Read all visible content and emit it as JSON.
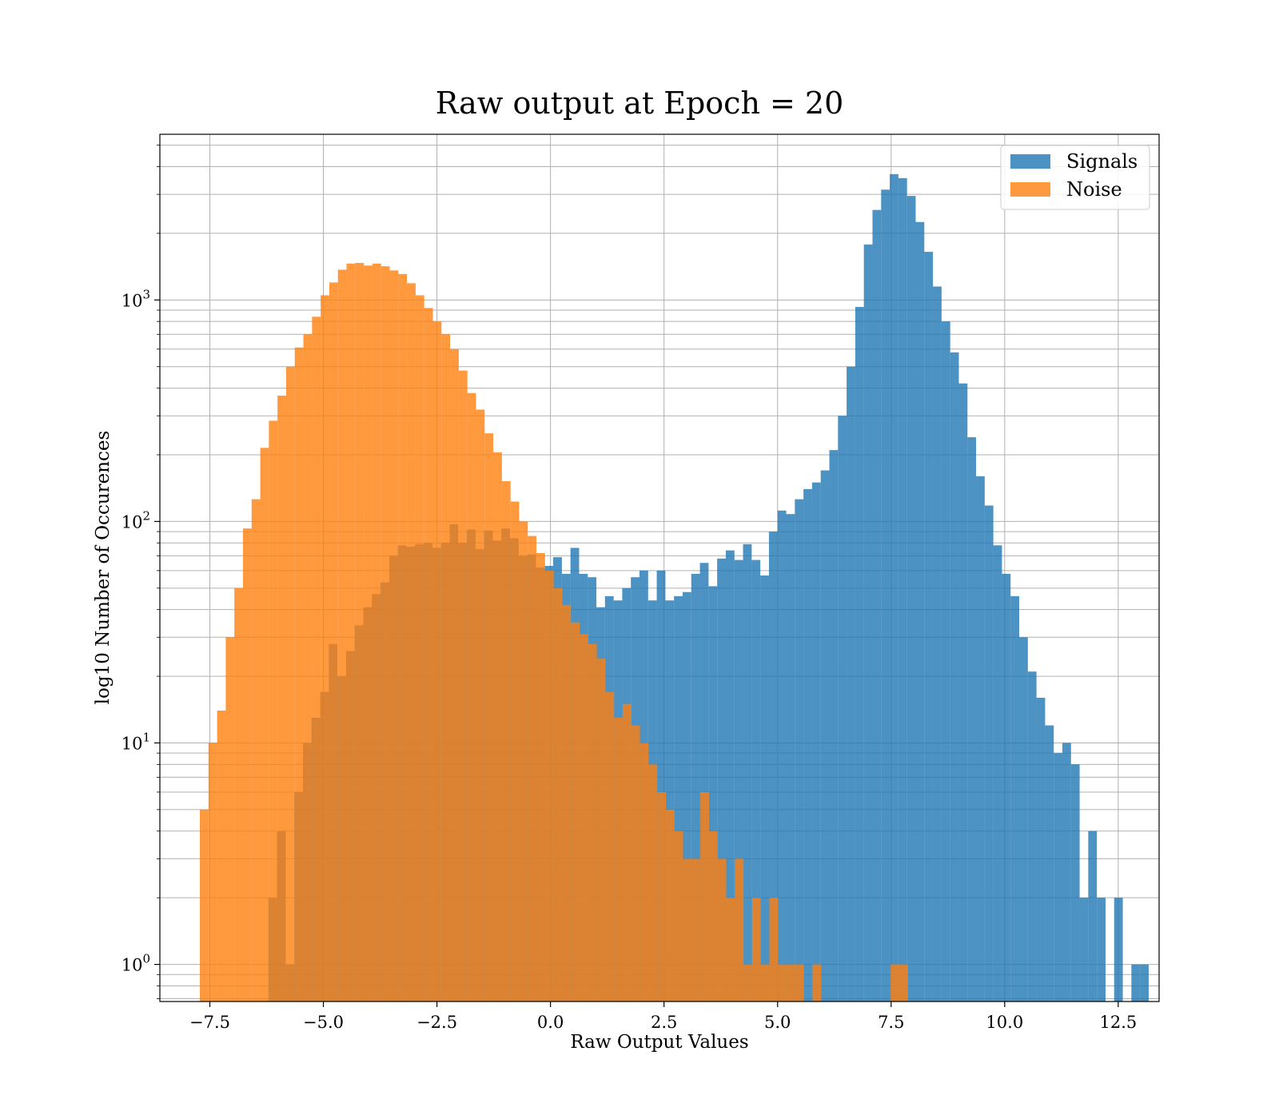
{
  "chart_data": {
    "type": "bar",
    "title": "Raw output at Epoch = 20",
    "xlabel": "Raw Output Values",
    "ylabel": "log10 Number of Occurences",
    "xlim": [
      -8.6,
      13.4
    ],
    "ylim": [
      0.68,
      5600
    ],
    "yscale": "log",
    "grid": true,
    "legend_position": "top-right",
    "x_ticks": [
      "−7.5",
      "−5.0",
      "−2.5",
      "0.0",
      "2.5",
      "5.0",
      "7.5",
      "10.0",
      "12.5"
    ],
    "y_tick_base": "10",
    "y_tick_exponents": [
      "0",
      "1",
      "2",
      "3"
    ],
    "colors": {
      "signals": "#1f77b4",
      "noise": "#ff7f0e"
    },
    "series": [
      {
        "name": "Signals",
        "bin_width": 0.1905,
        "bins": [
          [
            -6.21,
            2
          ],
          [
            -6.02,
            4
          ],
          [
            -5.83,
            1
          ],
          [
            -5.64,
            6
          ],
          [
            -5.45,
            10
          ],
          [
            -5.26,
            13
          ],
          [
            -5.07,
            17
          ],
          [
            -4.88,
            28
          ],
          [
            -4.69,
            20
          ],
          [
            -4.5,
            26
          ],
          [
            -4.31,
            34
          ],
          [
            -4.12,
            41
          ],
          [
            -3.93,
            47
          ],
          [
            -3.74,
            53
          ],
          [
            -3.55,
            70
          ],
          [
            -3.36,
            78
          ],
          [
            -3.17,
            77
          ],
          [
            -2.98,
            79
          ],
          [
            -2.79,
            80
          ],
          [
            -2.6,
            76
          ],
          [
            -2.41,
            80
          ],
          [
            -2.22,
            97
          ],
          [
            -2.03,
            80
          ],
          [
            -1.84,
            92
          ],
          [
            -1.65,
            75
          ],
          [
            -1.46,
            91
          ],
          [
            -1.27,
            82
          ],
          [
            -1.08,
            93
          ],
          [
            -0.89,
            84
          ],
          [
            -0.7,
            70
          ],
          [
            -0.51,
            71
          ],
          [
            -0.32,
            62
          ],
          [
            -0.13,
            63
          ],
          [
            0.06,
            69
          ],
          [
            0.25,
            58
          ],
          [
            0.44,
            76
          ],
          [
            0.63,
            58
          ],
          [
            0.82,
            56
          ],
          [
            1.01,
            41
          ],
          [
            1.2,
            46
          ],
          [
            1.39,
            44
          ],
          [
            1.58,
            50
          ],
          [
            1.77,
            56
          ],
          [
            1.96,
            60
          ],
          [
            2.15,
            44
          ],
          [
            2.34,
            60
          ],
          [
            2.53,
            44
          ],
          [
            2.72,
            46
          ],
          [
            2.91,
            48
          ],
          [
            3.1,
            58
          ],
          [
            3.29,
            65
          ],
          [
            3.48,
            51
          ],
          [
            3.67,
            68
          ],
          [
            3.86,
            74
          ],
          [
            4.05,
            67
          ],
          [
            4.24,
            79
          ],
          [
            4.43,
            67
          ],
          [
            4.62,
            57
          ],
          [
            4.81,
            90
          ],
          [
            5.0,
            112
          ],
          [
            5.19,
            108
          ],
          [
            5.38,
            126
          ],
          [
            5.57,
            140
          ],
          [
            5.76,
            150
          ],
          [
            5.95,
            170
          ],
          [
            6.14,
            210
          ],
          [
            6.33,
            300
          ],
          [
            6.52,
            500
          ],
          [
            6.71,
            930
          ],
          [
            6.9,
            1780
          ],
          [
            7.09,
            2550
          ],
          [
            7.28,
            3150
          ],
          [
            7.47,
            3700
          ],
          [
            7.66,
            3550
          ],
          [
            7.85,
            2950
          ],
          [
            8.04,
            2250
          ],
          [
            8.23,
            1650
          ],
          [
            8.42,
            1150
          ],
          [
            8.61,
            800
          ],
          [
            8.8,
            580
          ],
          [
            8.99,
            420
          ],
          [
            9.18,
            240
          ],
          [
            9.37,
            160
          ],
          [
            9.56,
            118
          ],
          [
            9.75,
            78
          ],
          [
            9.94,
            58
          ],
          [
            10.13,
            46
          ],
          [
            10.32,
            30
          ],
          [
            10.51,
            21
          ],
          [
            10.7,
            16
          ],
          [
            10.89,
            12
          ],
          [
            11.08,
            9
          ],
          [
            11.27,
            10
          ],
          [
            11.46,
            8
          ],
          [
            11.65,
            2
          ],
          [
            11.84,
            4
          ],
          [
            12.03,
            2
          ],
          [
            12.22,
            0
          ],
          [
            12.41,
            2
          ],
          [
            12.6,
            0
          ],
          [
            12.79,
            1
          ],
          [
            12.98,
            1
          ]
        ]
      },
      {
        "name": "Noise",
        "bin_width": 0.1905,
        "bins": [
          [
            -7.72,
            5
          ],
          [
            -7.53,
            10
          ],
          [
            -7.34,
            14
          ],
          [
            -7.15,
            30
          ],
          [
            -6.96,
            50
          ],
          [
            -6.77,
            93
          ],
          [
            -6.58,
            126
          ],
          [
            -6.39,
            215
          ],
          [
            -6.2,
            285
          ],
          [
            -6.01,
            370
          ],
          [
            -5.82,
            500
          ],
          [
            -5.63,
            610
          ],
          [
            -5.44,
            700
          ],
          [
            -5.25,
            840
          ],
          [
            -5.06,
            1050
          ],
          [
            -4.87,
            1200
          ],
          [
            -4.68,
            1370
          ],
          [
            -4.49,
            1460
          ],
          [
            -4.3,
            1470
          ],
          [
            -4.11,
            1430
          ],
          [
            -3.92,
            1460
          ],
          [
            -3.73,
            1420
          ],
          [
            -3.54,
            1360
          ],
          [
            -3.35,
            1310
          ],
          [
            -3.16,
            1190
          ],
          [
            -2.97,
            1050
          ],
          [
            -2.78,
            920
          ],
          [
            -2.59,
            800
          ],
          [
            -2.4,
            700
          ],
          [
            -2.21,
            600
          ],
          [
            -2.02,
            480
          ],
          [
            -1.83,
            380
          ],
          [
            -1.64,
            320
          ],
          [
            -1.45,
            250
          ],
          [
            -1.26,
            205
          ],
          [
            -1.07,
            152
          ],
          [
            -0.88,
            123
          ],
          [
            -0.69,
            100
          ],
          [
            -0.5,
            86
          ],
          [
            -0.31,
            72
          ],
          [
            -0.12,
            60
          ],
          [
            0.07,
            50
          ],
          [
            0.26,
            42
          ],
          [
            0.45,
            35
          ],
          [
            0.64,
            31
          ],
          [
            0.83,
            28
          ],
          [
            1.02,
            24
          ],
          [
            1.21,
            17
          ],
          [
            1.4,
            13
          ],
          [
            1.59,
            15
          ],
          [
            1.78,
            12
          ],
          [
            1.97,
            10
          ],
          [
            2.16,
            8
          ],
          [
            2.35,
            6
          ],
          [
            2.54,
            5
          ],
          [
            2.73,
            4
          ],
          [
            2.92,
            3
          ],
          [
            3.11,
            3
          ],
          [
            3.3,
            6
          ],
          [
            3.49,
            4
          ],
          [
            3.68,
            3
          ],
          [
            3.87,
            2
          ],
          [
            4.06,
            3
          ],
          [
            4.25,
            1
          ],
          [
            4.44,
            2
          ],
          [
            4.63,
            1
          ],
          [
            4.82,
            2
          ],
          [
            5.01,
            1
          ],
          [
            5.2,
            1
          ],
          [
            5.39,
            1
          ],
          [
            5.58,
            0
          ],
          [
            5.77,
            1
          ],
          [
            5.96,
            0
          ],
          [
            7.49,
            1
          ],
          [
            7.68,
            1
          ]
        ]
      }
    ]
  }
}
